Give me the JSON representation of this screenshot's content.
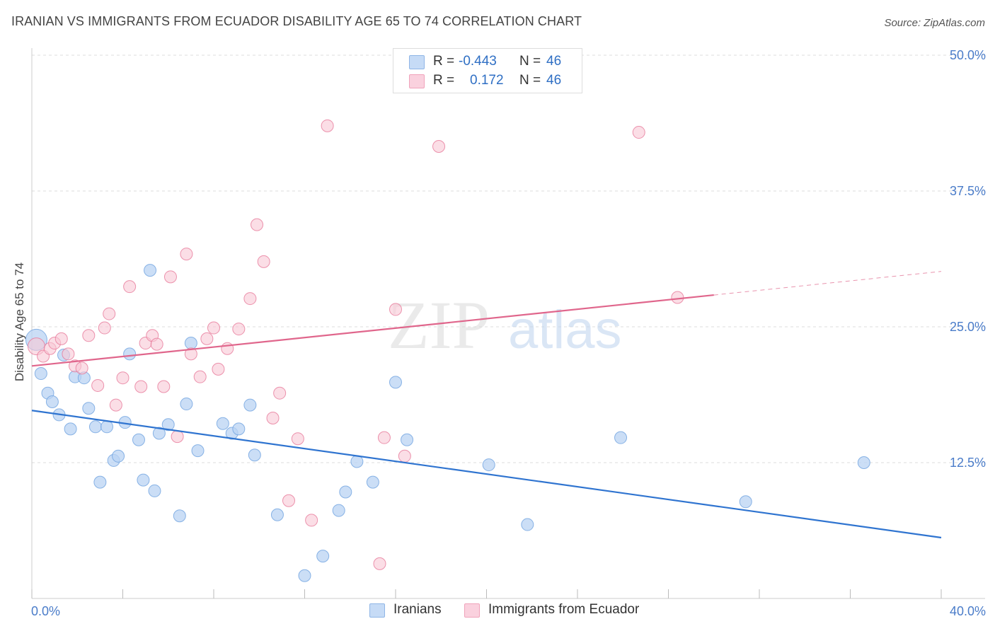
{
  "header": {
    "title": "IRANIAN VS IMMIGRANTS FROM ECUADOR DISABILITY AGE 65 TO 74 CORRELATION CHART",
    "source": "Source: ZipAtlas.com"
  },
  "stats": [
    {
      "r_label": "R =",
      "r_value": "-0.443",
      "n_label": "N =",
      "n_value": "46",
      "color": "#a9c8f0"
    },
    {
      "r_label": "R =",
      "r_value": "0.172",
      "n_label": "N =",
      "n_value": "46",
      "color": "#f6b9cb"
    }
  ],
  "legend": [
    {
      "label": "Iranians",
      "color": "#a9c8f0"
    },
    {
      "label": "Immigrants from Ecuador",
      "color": "#f6b9cb"
    }
  ],
  "watermark": {
    "zip": "ZIP",
    "atlas": "atlas"
  },
  "chart_data": {
    "type": "scatter",
    "title": "IRANIAN VS IMMIGRANTS FROM ECUADOR DISABILITY AGE 65 TO 74 CORRELATION CHART",
    "xlabel": "",
    "ylabel": "Disability Age 65 to 74",
    "xlim": [
      0,
      40
    ],
    "ylim": [
      0,
      50
    ],
    "x_tick_labels": [
      "0.0%",
      "40.0%"
    ],
    "y_ticks": [
      12.5,
      25.0,
      37.5,
      50.0
    ],
    "y_tick_labels": [
      "12.5%",
      "25.0%",
      "37.5%",
      "50.0%"
    ],
    "grid": true,
    "legend_position": "bottom-center",
    "series": [
      {
        "name": "Iranians",
        "color": "#6fa3e0",
        "fill": "#b9d3f3",
        "trend": {
          "x0": 0,
          "y0": 17.3,
          "x1": 40,
          "y1": 5.6,
          "dash_from": null
        },
        "points": [
          [
            0.2,
            23.8
          ],
          [
            0.4,
            20.7
          ],
          [
            0.7,
            18.9
          ],
          [
            0.9,
            18.1
          ],
          [
            1.2,
            16.9
          ],
          [
            1.4,
            22.4
          ],
          [
            1.7,
            15.6
          ],
          [
            1.9,
            20.4
          ],
          [
            2.3,
            20.3
          ],
          [
            2.5,
            17.5
          ],
          [
            2.8,
            15.8
          ],
          [
            3.0,
            10.7
          ],
          [
            3.3,
            15.8
          ],
          [
            3.6,
            12.7
          ],
          [
            3.8,
            13.1
          ],
          [
            4.1,
            16.2
          ],
          [
            4.3,
            22.5
          ],
          [
            4.7,
            14.6
          ],
          [
            4.9,
            10.9
          ],
          [
            5.2,
            30.2
          ],
          [
            5.4,
            9.9
          ],
          [
            5.6,
            15.2
          ],
          [
            6.0,
            16.0
          ],
          [
            6.5,
            7.6
          ],
          [
            6.8,
            17.9
          ],
          [
            7.0,
            23.5
          ],
          [
            7.3,
            13.6
          ],
          [
            8.4,
            16.1
          ],
          [
            8.8,
            15.2
          ],
          [
            9.1,
            15.6
          ],
          [
            9.6,
            17.8
          ],
          [
            9.8,
            13.2
          ],
          [
            10.8,
            7.7
          ],
          [
            12.0,
            2.1
          ],
          [
            12.8,
            3.9
          ],
          [
            13.5,
            8.1
          ],
          [
            13.8,
            9.8
          ],
          [
            14.3,
            12.6
          ],
          [
            15.0,
            10.7
          ],
          [
            16.0,
            19.9
          ],
          [
            16.5,
            14.6
          ],
          [
            20.1,
            12.3
          ],
          [
            21.8,
            6.8
          ],
          [
            25.9,
            14.8
          ],
          [
            31.4,
            8.9
          ],
          [
            36.6,
            12.5
          ]
        ]
      },
      {
        "name": "Immigrants from Ecuador",
        "color": "#e7799a",
        "fill": "#f9c8d6",
        "trend": {
          "x0": 0,
          "y0": 21.4,
          "x1": 40,
          "y1": 30.1,
          "dash_from": 30.0
        },
        "points": [
          [
            0.2,
            23.2
          ],
          [
            0.5,
            22.3
          ],
          [
            0.8,
            23.0
          ],
          [
            1.0,
            23.5
          ],
          [
            1.3,
            23.9
          ],
          [
            1.6,
            22.5
          ],
          [
            1.9,
            21.4
          ],
          [
            2.2,
            21.2
          ],
          [
            2.5,
            24.2
          ],
          [
            2.9,
            19.6
          ],
          [
            3.2,
            24.9
          ],
          [
            3.4,
            26.2
          ],
          [
            3.7,
            17.8
          ],
          [
            4.0,
            20.3
          ],
          [
            4.3,
            28.7
          ],
          [
            4.8,
            19.5
          ],
          [
            5.0,
            23.5
          ],
          [
            5.3,
            24.2
          ],
          [
            5.5,
            23.4
          ],
          [
            5.8,
            19.5
          ],
          [
            6.1,
            29.6
          ],
          [
            6.4,
            14.9
          ],
          [
            6.8,
            31.7
          ],
          [
            7.0,
            22.5
          ],
          [
            7.4,
            20.4
          ],
          [
            7.7,
            23.9
          ],
          [
            8.0,
            24.9
          ],
          [
            8.2,
            21.1
          ],
          [
            8.6,
            23.0
          ],
          [
            9.1,
            24.8
          ],
          [
            9.6,
            27.6
          ],
          [
            9.9,
            34.4
          ],
          [
            10.2,
            31.0
          ],
          [
            10.6,
            16.6
          ],
          [
            10.9,
            18.9
          ],
          [
            11.3,
            9.0
          ],
          [
            11.7,
            14.7
          ],
          [
            12.3,
            7.2
          ],
          [
            13.0,
            43.5
          ],
          [
            15.3,
            3.2
          ],
          [
            15.5,
            14.8
          ],
          [
            16.0,
            26.6
          ],
          [
            16.4,
            13.1
          ],
          [
            17.9,
            41.6
          ],
          [
            26.7,
            42.9
          ],
          [
            28.4,
            27.7
          ]
        ]
      }
    ]
  }
}
